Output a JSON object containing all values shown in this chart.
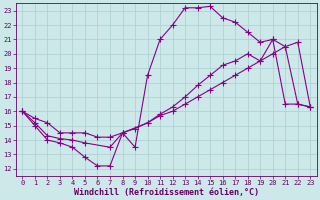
{
  "xlabel": "Windchill (Refroidissement éolien,°C)",
  "xlim": [
    -0.5,
    23.5
  ],
  "ylim": [
    11.5,
    23.5
  ],
  "xticks": [
    0,
    1,
    2,
    3,
    4,
    5,
    6,
    7,
    8,
    9,
    10,
    11,
    12,
    13,
    14,
    15,
    16,
    17,
    18,
    19,
    20,
    21,
    22,
    23
  ],
  "yticks": [
    12,
    13,
    14,
    15,
    16,
    17,
    18,
    19,
    20,
    21,
    22,
    23
  ],
  "background_color": "#cce8e8",
  "line_color": "#880088",
  "grid_color": "#aacfcf",
  "line1_x": [
    0,
    1,
    2,
    3,
    4,
    5,
    6,
    7,
    8,
    9,
    10,
    11,
    12,
    13,
    14,
    15,
    16,
    17,
    18,
    19,
    20,
    21,
    22,
    23
  ],
  "line1_y": [
    16.0,
    15.0,
    14.0,
    13.8,
    13.5,
    12.8,
    12.2,
    12.2,
    14.5,
    13.5,
    18.5,
    21.0,
    22.0,
    23.2,
    23.2,
    23.3,
    22.5,
    22.2,
    21.5,
    20.8,
    21.0,
    16.5,
    16.5,
    16.3
  ],
  "line2_x": [
    0,
    1,
    2,
    3,
    4,
    5,
    7,
    8,
    10,
    11,
    12,
    13,
    14,
    15,
    16,
    17,
    18,
    19,
    20,
    21,
    22,
    23
  ],
  "line2_y": [
    16.0,
    15.2,
    14.3,
    14.1,
    14.0,
    13.8,
    13.5,
    14.5,
    15.2,
    15.8,
    16.3,
    17.0,
    17.8,
    18.5,
    19.2,
    19.5,
    20.0,
    19.5,
    21.0,
    20.5,
    20.8,
    16.3
  ],
  "line3_x": [
    0,
    1,
    2,
    3,
    4,
    5,
    6,
    7,
    8,
    9,
    10,
    11,
    12,
    13,
    14,
    15,
    16,
    17,
    18,
    19,
    20,
    21,
    22,
    23
  ],
  "line3_y": [
    16.0,
    15.5,
    15.2,
    14.5,
    14.5,
    14.5,
    14.2,
    14.2,
    14.5,
    14.8,
    15.2,
    15.7,
    16.0,
    16.5,
    17.0,
    17.5,
    18.0,
    18.5,
    19.0,
    19.5,
    20.0,
    20.5,
    16.5,
    16.3
  ],
  "font_color": "#660066",
  "tick_fontsize": 5.0,
  "label_fontsize": 6.0
}
